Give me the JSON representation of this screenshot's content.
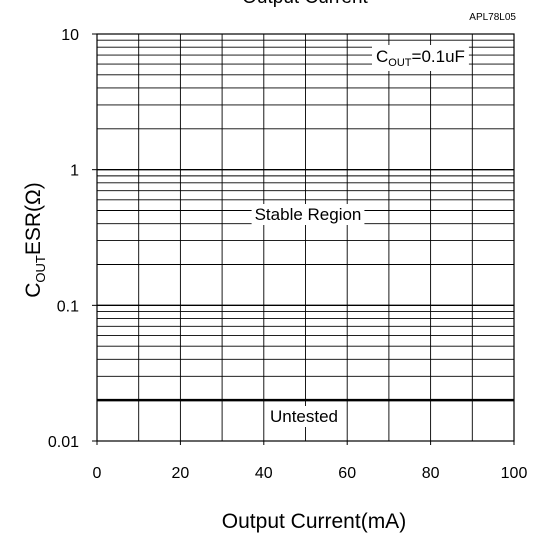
{
  "chart_data": {
    "type": "line",
    "title": "Output Current",
    "figure_code": "APL78L05",
    "xlabel": "Output Current(mA)",
    "ylabel": {
      "main_start": "C",
      "subscript": "OUT",
      "main_end": "ESR(Ω)"
    },
    "x_scale": "linear",
    "y_scale": "log",
    "xlim": [
      0,
      100
    ],
    "ylim": [
      0.01,
      10
    ],
    "x_ticks": [
      {
        "value": 0,
        "label": "0"
      },
      {
        "value": 20,
        "label": "20"
      },
      {
        "value": 40,
        "label": "40"
      },
      {
        "value": 60,
        "label": "60"
      },
      {
        "value": 80,
        "label": "80"
      },
      {
        "value": 100,
        "label": "100"
      }
    ],
    "y_ticks": [
      {
        "value": 0.01,
        "label": "0.01"
      },
      {
        "value": 0.1,
        "label": "0.1"
      },
      {
        "value": 1,
        "label": "1"
      },
      {
        "value": 10,
        "label": "10"
      }
    ],
    "grid": true,
    "boundary": {
      "y": 0.02,
      "x": [
        0,
        100
      ],
      "color": "#000000"
    },
    "annotations": {
      "condition": {
        "main": "C",
        "subscript": "OUT",
        "rest": "=0.1uF"
      },
      "stable_region": "Stable Region",
      "untested": "Untested"
    }
  }
}
